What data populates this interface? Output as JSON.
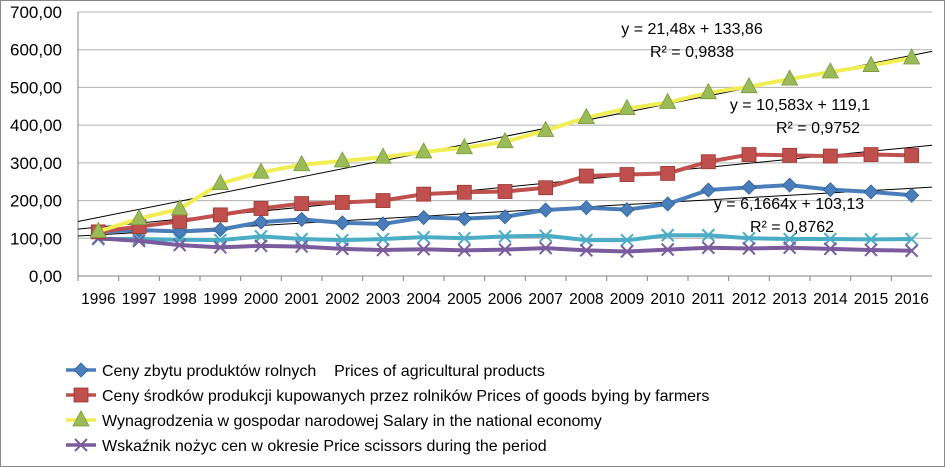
{
  "chart_data": {
    "type": "line",
    "x": [
      "1996",
      "1997",
      "1998",
      "1999",
      "2000",
      "2001",
      "2002",
      "2003",
      "2004",
      "2005",
      "2006",
      "2007",
      "2008",
      "2009",
      "2010",
      "2011",
      "2012",
      "2013",
      "2014",
      "2015",
      "2016"
    ],
    "ylim": [
      0,
      700
    ],
    "yticks": [
      "0,00",
      "100,00",
      "200,00",
      "300,00",
      "400,00",
      "500,00",
      "600,00",
      "700,00"
    ],
    "grid": true,
    "legend_position": "bottom",
    "series": [
      {
        "name": "Ceny zbytu produktów rolnych    Prices of agricultural products",
        "color": "#4a7ebb",
        "marker": "diamond",
        "values": [
          117,
          122,
          118,
          123,
          143,
          150,
          141,
          138,
          155,
          152,
          157,
          175,
          181,
          176,
          191,
          228,
          235,
          241,
          229,
          223,
          214
        ]
      },
      {
        "name": "Ceny środków produkcji kupowanych przez rolników Prices of goods bying by farmers",
        "color": "#c0504d",
        "marker": "square",
        "values": [
          117,
          131,
          145,
          162,
          179,
          192,
          195,
          200,
          217,
          222,
          224,
          234,
          265,
          269,
          272,
          303,
          322,
          320,
          318,
          322,
          320
        ]
      },
      {
        "name": "Wynagrodzenia w gospodar narodowej Salary in the national economy",
        "color": "#f0ee54",
        "marker": "triangle",
        "values": [
          118,
          152,
          178,
          245,
          275,
          295,
          305,
          315,
          329,
          340,
          356,
          386,
          420,
          444,
          460,
          486,
          502,
          522,
          541,
          558,
          578
        ]
      },
      {
        "name": "Wskaźnik nożyc cen w okresie Price scissors during the period",
        "color": "#7a5c9e",
        "marker": "x",
        "values": [
          100,
          93,
          82,
          76,
          80,
          78,
          72,
          69,
          71,
          68,
          70,
          74,
          68,
          65,
          70,
          75,
          73,
          75,
          72,
          69,
          67
        ]
      },
      {
        "name": "",
        "color": "#4bacc6",
        "marker": "x",
        "values": [
          98,
          98,
          96,
          95,
          105,
          98,
          95,
          98,
          103,
          100,
          105,
          107,
          95,
          95,
          108,
          108,
          100,
          98,
          98,
          97,
          98
        ]
      }
    ],
    "trendlines": [
      {
        "series": 2,
        "equation": "y = 21,48x + 133,86",
        "r2": "R² = 0,9838",
        "slope": 21.48,
        "intercept": 133.86
      },
      {
        "series": 1,
        "equation": "y = 10,583x + 119,1",
        "r2": "R² = 0,9752",
        "slope": 10.583,
        "intercept": 119.1
      },
      {
        "series": 0,
        "equation": "y = 6,1664x + 103,13",
        "r2": "R² = 0,8762",
        "slope": 6.1664,
        "intercept": 103.13
      }
    ]
  }
}
